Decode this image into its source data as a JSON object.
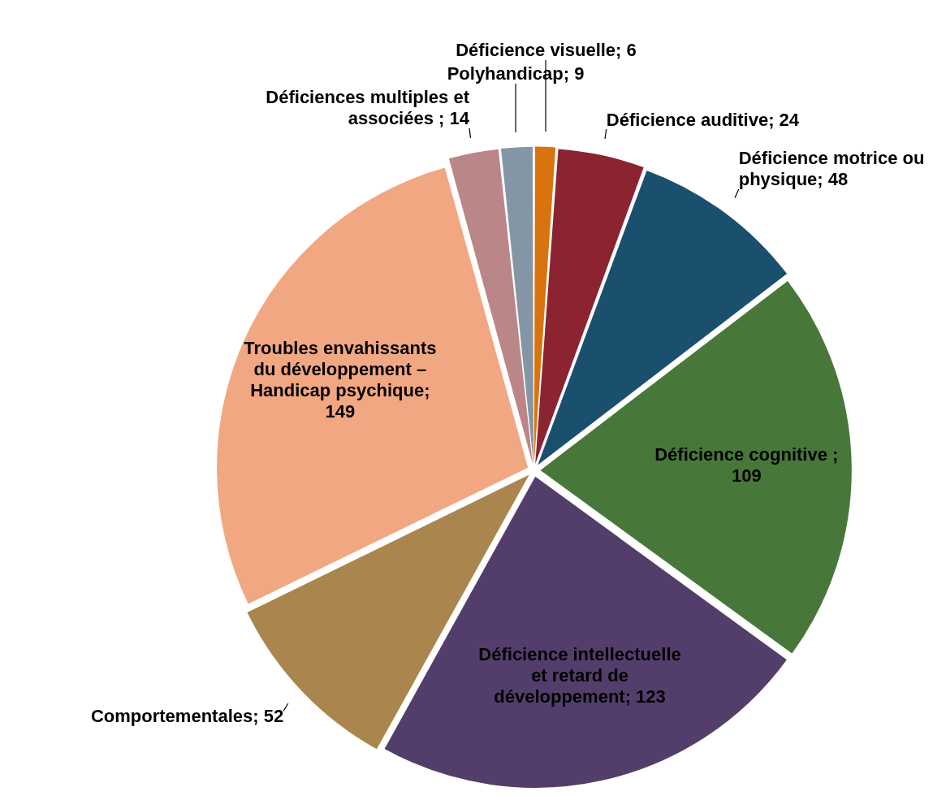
{
  "chart_data": {
    "type": "pie",
    "categories": [
      "Déficience visuelle",
      "Déficience auditive",
      "Déficience motrice ou physique",
      "Déficience cognitive",
      "Déficience intellectuelle et retard de développement",
      "Comportementales",
      "Troubles envahissants du développement – Handicap psychique",
      "Déficiences multiples et associées",
      "Polyhandicap"
    ],
    "values": [
      6,
      24,
      48,
      109,
      123,
      52,
      149,
      14,
      9
    ],
    "colors": [
      "#d9730d",
      "#8b2331",
      "#1b4f6e",
      "#47783a",
      "#533e6b",
      "#aa864e",
      "#f2a783",
      "#bb8688",
      "#8496a6"
    ],
    "value_labels": [
      "; 6",
      "; 24",
      "; 48",
      " ; 109",
      "; 123",
      "; 52",
      "; 149",
      " ; 14",
      "; 9"
    ]
  }
}
